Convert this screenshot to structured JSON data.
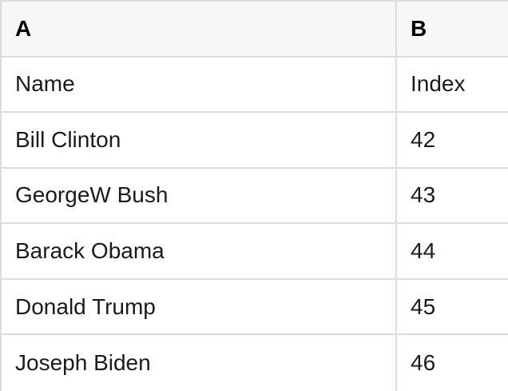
{
  "colors": {
    "border": "#dcdcdc",
    "header_bg": "#f7f7f7",
    "cell_bg": "#ffffff",
    "text": "#1b1b1b",
    "header_text": "#000000"
  },
  "table": {
    "column_headers": [
      "A",
      "B"
    ],
    "rows": [
      {
        "a": "Name",
        "b": "Index"
      },
      {
        "a": "Bill Clinton",
        "b": "42"
      },
      {
        "a": "GeorgeW Bush",
        "b": "43"
      },
      {
        "a": "Barack Obama",
        "b": "44"
      },
      {
        "a": "Donald Trump",
        "b": "45"
      },
      {
        "a": "Joseph Biden",
        "b": "46"
      }
    ]
  }
}
